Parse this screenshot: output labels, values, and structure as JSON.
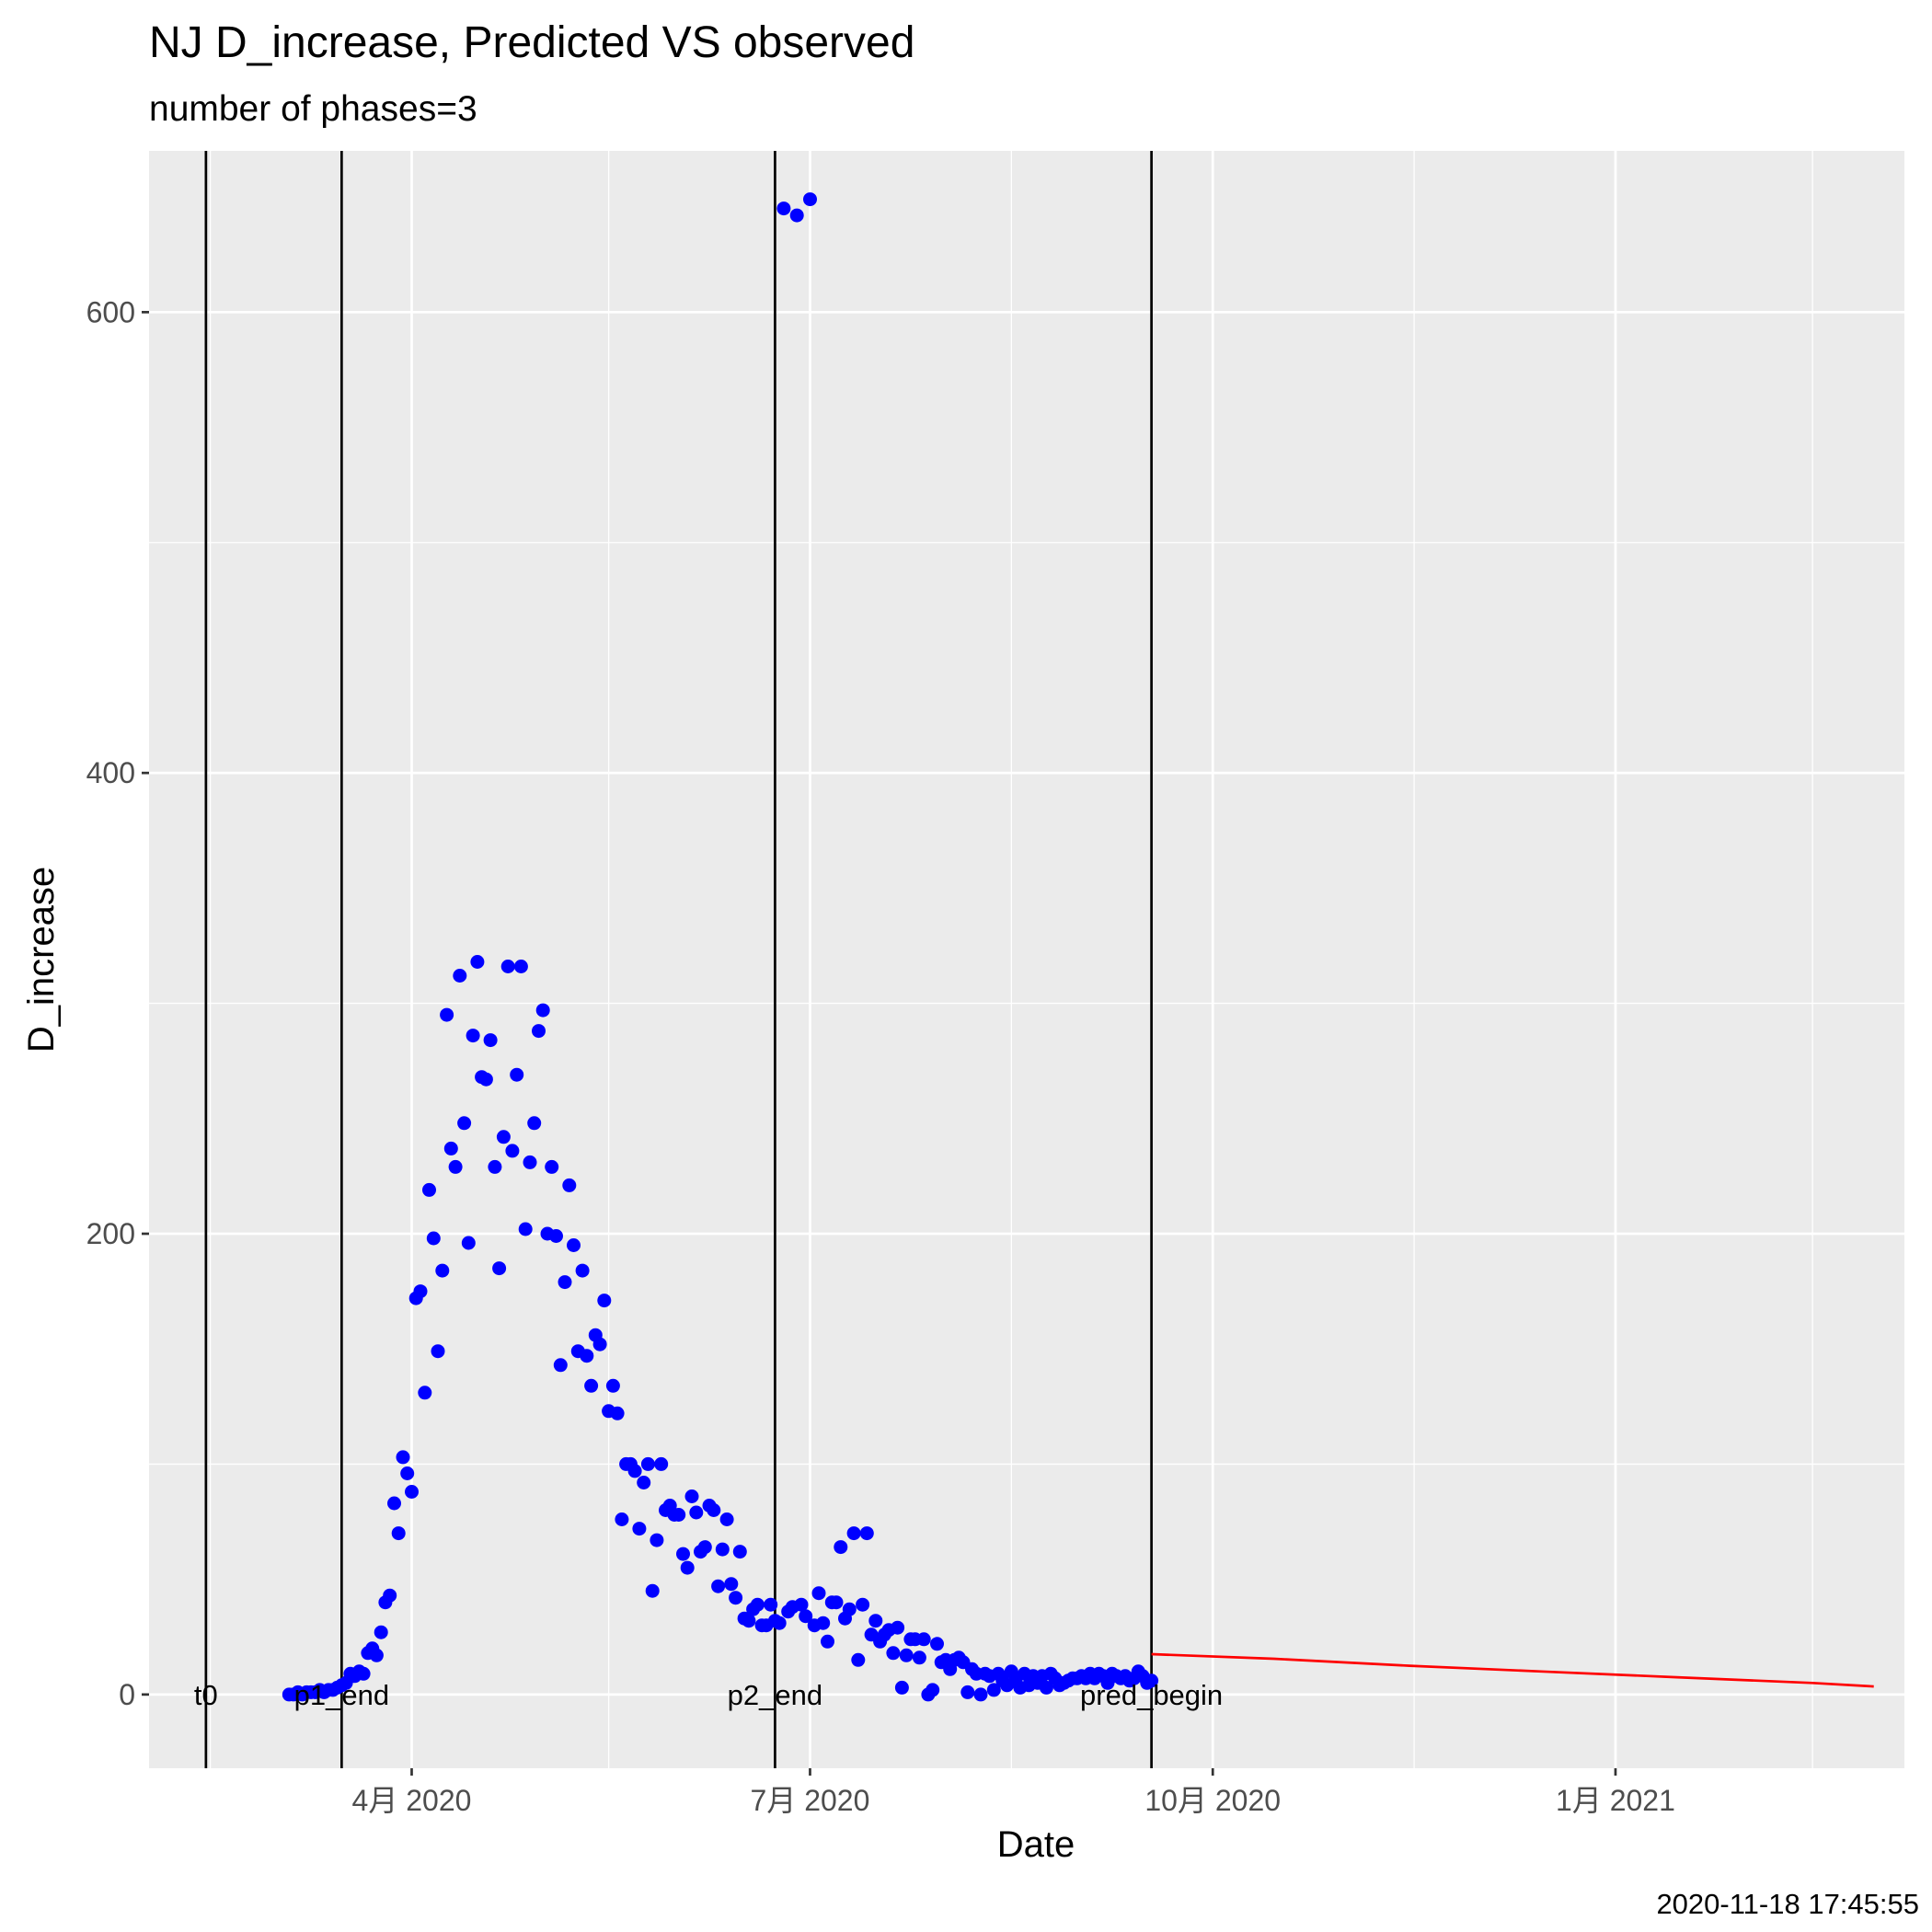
{
  "chart_data": {
    "type": "scatter",
    "title": "NJ D_increase, Predicted VS observed",
    "subtitle": "number of phases=3",
    "xlabel": "Date",
    "ylabel": "D_increase",
    "caption": "2020-11-18 17:45:55",
    "x_axis": {
      "type": "date",
      "range": [
        "2020-02-01",
        "2021-03-08"
      ],
      "ticks": [
        {
          "date": "2020-04-01",
          "label": "4月 2020"
        },
        {
          "date": "2020-07-01",
          "label": "7月 2020"
        },
        {
          "date": "2020-10-01",
          "label": "10月 2020"
        },
        {
          "date": "2021-01-01",
          "label": "1月 2021"
        }
      ],
      "minor_ticks": [
        "2020-02-15",
        "2020-05-16",
        "2020-08-16",
        "2020-11-16",
        "2021-02-15"
      ]
    },
    "y_axis": {
      "range": [
        -32,
        670
      ],
      "ticks": [
        0,
        200,
        400,
        600
      ],
      "minor_ticks": [
        100,
        300,
        500
      ]
    },
    "grid": true,
    "background": "#ebebeb",
    "colors": {
      "observed": "#0000ff",
      "predicted": "#ff0000",
      "vlines": "#000000"
    },
    "vlines": [
      {
        "date": "2020-02-14",
        "label": "t0"
      },
      {
        "date": "2020-03-16",
        "label": "p1_end"
      },
      {
        "date": "2020-06-23",
        "label": "p2_end"
      },
      {
        "date": "2020-09-17",
        "label": "pred_begin"
      }
    ],
    "series": [
      {
        "kind": "points",
        "color": "#0000ff",
        "points": [
          [
            "2020-03-04",
            0
          ],
          [
            "2020-03-05",
            0
          ],
          [
            "2020-03-06",
            1
          ],
          [
            "2020-03-07",
            0
          ],
          [
            "2020-03-08",
            1
          ],
          [
            "2020-03-09",
            1
          ],
          [
            "2020-03-10",
            1
          ],
          [
            "2020-03-11",
            2
          ],
          [
            "2020-03-12",
            1
          ],
          [
            "2020-03-13",
            2
          ],
          [
            "2020-03-14",
            2
          ],
          [
            "2020-03-15",
            3
          ],
          [
            "2020-03-16",
            4
          ],
          [
            "2020-03-17",
            5
          ],
          [
            "2020-03-18",
            9
          ],
          [
            "2020-03-19",
            8
          ],
          [
            "2020-03-20",
            10
          ],
          [
            "2020-03-21",
            9
          ],
          [
            "2020-03-22",
            18
          ],
          [
            "2020-03-23",
            20
          ],
          [
            "2020-03-24",
            17
          ],
          [
            "2020-03-25",
            27
          ],
          [
            "2020-03-26",
            40
          ],
          [
            "2020-03-27",
            43
          ],
          [
            "2020-03-28",
            83
          ],
          [
            "2020-03-29",
            70
          ],
          [
            "2020-03-30",
            103
          ],
          [
            "2020-03-31",
            96
          ],
          [
            "2020-04-01",
            88
          ],
          [
            "2020-04-02",
            172
          ],
          [
            "2020-04-03",
            175
          ],
          [
            "2020-04-04",
            131
          ],
          [
            "2020-04-05",
            219
          ],
          [
            "2020-04-06",
            198
          ],
          [
            "2020-04-07",
            149
          ],
          [
            "2020-04-08",
            184
          ],
          [
            "2020-04-09",
            295
          ],
          [
            "2020-04-10",
            237
          ],
          [
            "2020-04-11",
            229
          ],
          [
            "2020-04-12",
            312
          ],
          [
            "2020-04-13",
            248
          ],
          [
            "2020-04-14",
            196
          ],
          [
            "2020-04-15",
            286
          ],
          [
            "2020-04-16",
            318
          ],
          [
            "2020-04-17",
            268
          ],
          [
            "2020-04-18",
            267
          ],
          [
            "2020-04-19",
            284
          ],
          [
            "2020-04-20",
            229
          ],
          [
            "2020-04-21",
            185
          ],
          [
            "2020-04-22",
            242
          ],
          [
            "2020-04-23",
            316
          ],
          [
            "2020-04-24",
            236
          ],
          [
            "2020-04-25",
            269
          ],
          [
            "2020-04-26",
            316
          ],
          [
            "2020-04-27",
            202
          ],
          [
            "2020-04-28",
            231
          ],
          [
            "2020-04-29",
            248
          ],
          [
            "2020-04-30",
            288
          ],
          [
            "2020-05-01",
            297
          ],
          [
            "2020-05-02",
            200
          ],
          [
            "2020-05-03",
            229
          ],
          [
            "2020-05-04",
            199
          ],
          [
            "2020-05-05",
            143
          ],
          [
            "2020-05-06",
            179
          ],
          [
            "2020-05-07",
            221
          ],
          [
            "2020-05-08",
            195
          ],
          [
            "2020-05-09",
            149
          ],
          [
            "2020-05-10",
            184
          ],
          [
            "2020-05-11",
            147
          ],
          [
            "2020-05-12",
            134
          ],
          [
            "2020-05-13",
            156
          ],
          [
            "2020-05-14",
            152
          ],
          [
            "2020-05-15",
            171
          ],
          [
            "2020-05-16",
            123
          ],
          [
            "2020-05-17",
            134
          ],
          [
            "2020-05-18",
            122
          ],
          [
            "2020-05-19",
            76
          ],
          [
            "2020-05-20",
            100
          ],
          [
            "2020-05-21",
            100
          ],
          [
            "2020-05-22",
            97
          ],
          [
            "2020-05-23",
            72
          ],
          [
            "2020-05-24",
            92
          ],
          [
            "2020-05-25",
            100
          ],
          [
            "2020-05-26",
            45
          ],
          [
            "2020-05-27",
            67
          ],
          [
            "2020-05-28",
            100
          ],
          [
            "2020-05-29",
            80
          ],
          [
            "2020-05-30",
            82
          ],
          [
            "2020-05-31",
            78
          ],
          [
            "2020-06-01",
            78
          ],
          [
            "2020-06-02",
            61
          ],
          [
            "2020-06-03",
            55
          ],
          [
            "2020-06-04",
            86
          ],
          [
            "2020-06-05",
            79
          ],
          [
            "2020-06-06",
            62
          ],
          [
            "2020-06-07",
            64
          ],
          [
            "2020-06-08",
            82
          ],
          [
            "2020-06-09",
            80
          ],
          [
            "2020-06-10",
            47
          ],
          [
            "2020-06-11",
            63
          ],
          [
            "2020-06-12",
            76
          ],
          [
            "2020-06-13",
            48
          ],
          [
            "2020-06-14",
            42
          ],
          [
            "2020-06-15",
            62
          ],
          [
            "2020-06-16",
            33
          ],
          [
            "2020-06-17",
            32
          ],
          [
            "2020-06-18",
            37
          ],
          [
            "2020-06-19",
            39
          ],
          [
            "2020-06-20",
            30
          ],
          [
            "2020-06-21",
            30
          ],
          [
            "2020-06-22",
            39
          ],
          [
            "2020-06-23",
            32
          ],
          [
            "2020-06-24",
            31
          ],
          [
            "2020-06-25",
            645
          ],
          [
            "2020-06-26",
            36
          ],
          [
            "2020-06-27",
            38
          ],
          [
            "2020-06-28",
            642
          ],
          [
            "2020-06-29",
            39
          ],
          [
            "2020-06-30",
            34
          ],
          [
            "2020-07-01",
            649
          ],
          [
            "2020-07-02",
            30
          ],
          [
            "2020-07-03",
            44
          ],
          [
            "2020-07-04",
            31
          ],
          [
            "2020-07-05",
            23
          ],
          [
            "2020-07-06",
            40
          ],
          [
            "2020-07-07",
            40
          ],
          [
            "2020-07-08",
            64
          ],
          [
            "2020-07-09",
            33
          ],
          [
            "2020-07-10",
            37
          ],
          [
            "2020-07-11",
            70
          ],
          [
            "2020-07-12",
            15
          ],
          [
            "2020-07-13",
            39
          ],
          [
            "2020-07-14",
            70
          ],
          [
            "2020-07-15",
            26
          ],
          [
            "2020-07-16",
            32
          ],
          [
            "2020-07-17",
            23
          ],
          [
            "2020-07-18",
            26
          ],
          [
            "2020-07-19",
            28
          ],
          [
            "2020-07-20",
            18
          ],
          [
            "2020-07-21",
            29
          ],
          [
            "2020-07-22",
            3
          ],
          [
            "2020-07-23",
            17
          ],
          [
            "2020-07-24",
            24
          ],
          [
            "2020-07-25",
            24
          ],
          [
            "2020-07-26",
            16
          ],
          [
            "2020-07-27",
            24
          ],
          [
            "2020-07-28",
            0
          ],
          [
            "2020-07-29",
            2
          ],
          [
            "2020-07-30",
            22
          ],
          [
            "2020-07-31",
            14
          ],
          [
            "2020-08-01",
            15
          ],
          [
            "2020-08-02",
            11
          ],
          [
            "2020-08-03",
            15
          ],
          [
            "2020-08-04",
            16
          ],
          [
            "2020-08-05",
            14
          ],
          [
            "2020-08-06",
            1
          ],
          [
            "2020-08-07",
            11
          ],
          [
            "2020-08-08",
            9
          ],
          [
            "2020-08-09",
            0
          ],
          [
            "2020-08-10",
            9
          ],
          [
            "2020-08-11",
            8
          ],
          [
            "2020-08-12",
            2
          ],
          [
            "2020-08-13",
            9
          ],
          [
            "2020-08-14",
            6
          ],
          [
            "2020-08-15",
            4
          ],
          [
            "2020-08-16",
            10
          ],
          [
            "2020-08-17",
            7
          ],
          [
            "2020-08-18",
            3
          ],
          [
            "2020-08-19",
            9
          ],
          [
            "2020-08-20",
            4
          ],
          [
            "2020-08-21",
            8
          ],
          [
            "2020-08-22",
            5
          ],
          [
            "2020-08-23",
            8
          ],
          [
            "2020-08-24",
            3
          ],
          [
            "2020-08-25",
            9
          ],
          [
            "2020-08-26",
            7
          ],
          [
            "2020-08-27",
            4
          ],
          [
            "2020-08-28",
            5
          ],
          [
            "2020-08-29",
            6
          ],
          [
            "2020-08-30",
            7
          ],
          [
            "2020-08-31",
            7
          ],
          [
            "2020-09-01",
            8
          ],
          [
            "2020-09-02",
            7
          ],
          [
            "2020-09-03",
            9
          ],
          [
            "2020-09-04",
            7
          ],
          [
            "2020-09-05",
            9
          ],
          [
            "2020-09-06",
            8
          ],
          [
            "2020-09-07",
            5
          ],
          [
            "2020-09-08",
            9
          ],
          [
            "2020-09-09",
            8
          ],
          [
            "2020-09-10",
            7
          ],
          [
            "2020-09-11",
            8
          ],
          [
            "2020-09-12",
            6
          ],
          [
            "2020-09-13",
            7
          ],
          [
            "2020-09-14",
            10
          ],
          [
            "2020-09-15",
            8
          ],
          [
            "2020-09-16",
            5
          ],
          [
            "2020-09-17",
            6
          ]
        ]
      },
      {
        "kind": "line",
        "color": "#ff0000",
        "points": [
          [
            "2020-09-17",
            17.5
          ],
          [
            "2020-10-15",
            15.5
          ],
          [
            "2020-11-15",
            12.5
          ],
          [
            "2020-12-15",
            10.0
          ],
          [
            "2021-01-15",
            7.5
          ],
          [
            "2021-02-15",
            5.0
          ],
          [
            "2021-03-01",
            3.5
          ]
        ]
      }
    ]
  }
}
